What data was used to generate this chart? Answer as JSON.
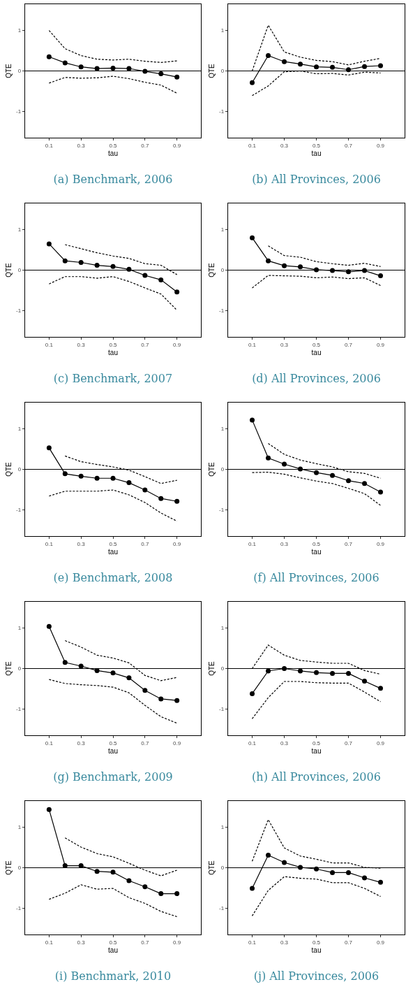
{
  "chart_data": [
    {
      "type": "line",
      "title": "(a) Benchmark, 2006",
      "xlabel": "tau",
      "ylabel": "QTE",
      "x": [
        0.1,
        0.2,
        0.3,
        0.4,
        0.5,
        0.6,
        0.7,
        0.8,
        0.9
      ],
      "xlim": [
        -0.05,
        1.05
      ],
      "xticks": [
        0.1,
        0.3,
        0.5,
        0.7,
        0.9
      ],
      "ylim": [
        -1.65,
        1.65
      ],
      "yticks": [
        -1,
        0,
        1
      ],
      "grid": false,
      "marker": "circle",
      "line_style": "solid",
      "ref_lines": [
        {
          "axis": "y",
          "value": 0,
          "color": "#000000"
        }
      ],
      "series": [
        {
          "color": "#000000",
          "values": [
            0.35,
            0.2,
            0.1,
            0.06,
            0.07,
            0.06,
            -0.01,
            -0.07,
            -0.15
          ]
        },
        {
          "color": "#000000",
          "marker": "none",
          "line_style": "dashed",
          "values": [
            1.0,
            0.55,
            0.38,
            0.29,
            0.27,
            0.29,
            0.24,
            0.21,
            0.25
          ]
        },
        {
          "color": "#000000",
          "marker": "none",
          "line_style": "dashed",
          "values": [
            -0.3,
            -0.16,
            -0.18,
            -0.17,
            -0.13,
            -0.19,
            -0.28,
            -0.35,
            -0.55
          ]
        }
      ]
    },
    {
      "type": "line",
      "title": "(b) All Provinces, 2006",
      "xlabel": "tau",
      "ylabel": "QTE",
      "x": [
        0.1,
        0.2,
        0.3,
        0.4,
        0.5,
        0.6,
        0.7,
        0.8,
        0.9
      ],
      "xlim": [
        -0.05,
        1.05
      ],
      "xticks": [
        0.1,
        0.3,
        0.5,
        0.7,
        0.9
      ],
      "ylim": [
        -1.65,
        1.65
      ],
      "yticks": [
        -1,
        0,
        1
      ],
      "grid": false,
      "marker": "circle",
      "line_style": "solid",
      "ref_lines": [
        {
          "axis": "y",
          "value": 0,
          "color": "#000000"
        }
      ],
      "series": [
        {
          "color": "#000000",
          "values": [
            -0.29,
            0.38,
            0.23,
            0.17,
            0.1,
            0.09,
            0.03,
            0.11,
            0.13
          ]
        },
        {
          "color": "#000000",
          "marker": "none",
          "line_style": "dashed",
          "values": [
            0.0,
            1.13,
            0.47,
            0.34,
            0.26,
            0.23,
            0.15,
            0.24,
            0.31
          ]
        },
        {
          "color": "#000000",
          "marker": "none",
          "line_style": "dashed",
          "values": [
            -0.61,
            -0.37,
            -0.02,
            0.0,
            -0.07,
            -0.06,
            -0.1,
            -0.03,
            -0.05
          ]
        }
      ]
    },
    {
      "type": "line",
      "title": "(c) Benchmark, 2007",
      "xlabel": "tau",
      "ylabel": "QTE",
      "x": [
        0.1,
        0.2,
        0.3,
        0.4,
        0.5,
        0.6,
        0.7,
        0.8,
        0.9
      ],
      "xlim": [
        -0.05,
        1.05
      ],
      "xticks": [
        0.1,
        0.3,
        0.5,
        0.7,
        0.9
      ],
      "ylim": [
        -1.65,
        1.65
      ],
      "yticks": [
        -1,
        0,
        1
      ],
      "grid": false,
      "marker": "circle",
      "line_style": "solid",
      "ref_lines": [
        {
          "axis": "y",
          "value": 0,
          "color": "#000000"
        }
      ],
      "series": [
        {
          "color": "#000000",
          "values": [
            0.65,
            0.23,
            0.19,
            0.12,
            0.09,
            0.02,
            -0.13,
            -0.24,
            -0.54
          ]
        },
        {
          "color": "#000000",
          "marker": "none",
          "line_style": "dashed",
          "values": [
            null,
            0.63,
            0.53,
            0.43,
            0.35,
            0.29,
            0.16,
            0.12,
            -0.11
          ]
        },
        {
          "color": "#000000",
          "marker": "none",
          "line_style": "dashed",
          "values": [
            -0.34,
            -0.16,
            -0.16,
            -0.2,
            -0.16,
            -0.28,
            -0.44,
            -0.59,
            -0.99
          ]
        }
      ]
    },
    {
      "type": "line",
      "title": "(d) All Provinces, 2006",
      "xlabel": "tau",
      "ylabel": "QTE",
      "x": [
        0.1,
        0.2,
        0.3,
        0.4,
        0.5,
        0.6,
        0.7,
        0.8,
        0.9
      ],
      "xlim": [
        -0.05,
        1.05
      ],
      "xticks": [
        0.1,
        0.3,
        0.5,
        0.7,
        0.9
      ],
      "ylim": [
        -1.65,
        1.65
      ],
      "yticks": [
        -1,
        0,
        1
      ],
      "grid": false,
      "marker": "circle",
      "line_style": "solid",
      "ref_lines": [
        {
          "axis": "y",
          "value": 0,
          "color": "#000000"
        }
      ],
      "series": [
        {
          "color": "#000000",
          "values": [
            0.8,
            0.23,
            0.11,
            0.08,
            0.01,
            -0.01,
            -0.04,
            -0.01,
            -0.14
          ]
        },
        {
          "color": "#000000",
          "marker": "none",
          "line_style": "dashed",
          "values": [
            null,
            0.6,
            0.36,
            0.32,
            0.21,
            0.16,
            0.12,
            0.17,
            0.09
          ]
        },
        {
          "color": "#000000",
          "marker": "none",
          "line_style": "dashed",
          "values": [
            -0.44,
            -0.13,
            -0.14,
            -0.15,
            -0.19,
            -0.17,
            -0.21,
            -0.19,
            -0.38
          ]
        }
      ]
    },
    {
      "type": "line",
      "title": "(e) Benchmark, 2008",
      "xlabel": "tau",
      "ylabel": "QTE",
      "x": [
        0.1,
        0.2,
        0.3,
        0.4,
        0.5,
        0.6,
        0.7,
        0.8,
        0.9
      ],
      "xlim": [
        -0.05,
        1.05
      ],
      "xticks": [
        0.1,
        0.3,
        0.5,
        0.7,
        0.9
      ],
      "ylim": [
        -1.65,
        1.65
      ],
      "yticks": [
        -1,
        0,
        1
      ],
      "grid": false,
      "marker": "circle",
      "line_style": "solid",
      "ref_lines": [
        {
          "axis": "y",
          "value": 0,
          "color": "#000000"
        }
      ],
      "series": [
        {
          "color": "#000000",
          "values": [
            0.53,
            -0.11,
            -0.17,
            -0.22,
            -0.22,
            -0.33,
            -0.51,
            -0.72,
            -0.79
          ]
        },
        {
          "color": "#000000",
          "marker": "none",
          "line_style": "dashed",
          "values": [
            null,
            0.33,
            0.19,
            0.12,
            0.06,
            -0.02,
            -0.18,
            -0.35,
            -0.27
          ]
        },
        {
          "color": "#000000",
          "marker": "none",
          "line_style": "dashed",
          "values": [
            -0.66,
            -0.54,
            -0.54,
            -0.54,
            -0.51,
            -0.63,
            -0.82,
            -1.08,
            -1.28
          ]
        }
      ]
    },
    {
      "type": "line",
      "title": "(f) All Provinces, 2006",
      "xlabel": "tau",
      "ylabel": "QTE",
      "x": [
        0.1,
        0.2,
        0.3,
        0.4,
        0.5,
        0.6,
        0.7,
        0.8,
        0.9
      ],
      "xlim": [
        -0.05,
        1.05
      ],
      "xticks": [
        0.1,
        0.3,
        0.5,
        0.7,
        0.9
      ],
      "ylim": [
        -1.65,
        1.65
      ],
      "yticks": [
        -1,
        0,
        1
      ],
      "grid": false,
      "marker": "circle",
      "line_style": "solid",
      "ref_lines": [
        {
          "axis": "y",
          "value": 0,
          "color": "#000000"
        }
      ],
      "series": [
        {
          "color": "#000000",
          "values": [
            1.22,
            0.28,
            0.13,
            0.01,
            -0.08,
            -0.15,
            -0.28,
            -0.35,
            -0.56
          ]
        },
        {
          "color": "#000000",
          "marker": "none",
          "line_style": "dashed",
          "values": [
            null,
            0.64,
            0.37,
            0.23,
            0.14,
            0.06,
            -0.06,
            -0.1,
            -0.22
          ]
        },
        {
          "color": "#000000",
          "marker": "none",
          "line_style": "dashed",
          "values": [
            -0.08,
            -0.07,
            -0.12,
            -0.21,
            -0.29,
            -0.35,
            -0.47,
            -0.6,
            -0.89
          ]
        }
      ]
    },
    {
      "type": "line",
      "title": "(g) Benchmark, 2009",
      "xlabel": "tau",
      "ylabel": "QTE",
      "x": [
        0.1,
        0.2,
        0.3,
        0.4,
        0.5,
        0.6,
        0.7,
        0.8,
        0.9
      ],
      "xlim": [
        -0.05,
        1.05
      ],
      "xticks": [
        0.1,
        0.3,
        0.5,
        0.7,
        0.9
      ],
      "ylim": [
        -1.65,
        1.65
      ],
      "yticks": [
        -1,
        0,
        1
      ],
      "grid": false,
      "marker": "circle",
      "line_style": "solid",
      "ref_lines": [
        {
          "axis": "y",
          "value": 0,
          "color": "#000000"
        }
      ],
      "series": [
        {
          "color": "#000000",
          "values": [
            1.04,
            0.15,
            0.06,
            -0.05,
            -0.11,
            -0.23,
            -0.54,
            -0.75,
            -0.79
          ]
        },
        {
          "color": "#000000",
          "marker": "none",
          "line_style": "dashed",
          "values": [
            null,
            0.69,
            0.53,
            0.33,
            0.26,
            0.14,
            -0.17,
            -0.3,
            -0.22
          ]
        },
        {
          "color": "#000000",
          "marker": "none",
          "line_style": "dashed",
          "values": [
            -0.27,
            -0.37,
            -0.4,
            -0.42,
            -0.46,
            -0.6,
            -0.91,
            -1.19,
            -1.35
          ]
        }
      ]
    },
    {
      "type": "line",
      "title": "(h) All Provinces, 2006",
      "xlabel": "tau",
      "ylabel": "QTE",
      "x": [
        0.1,
        0.2,
        0.3,
        0.4,
        0.5,
        0.6,
        0.7,
        0.8,
        0.9
      ],
      "xlim": [
        -0.05,
        1.05
      ],
      "xticks": [
        0.1,
        0.3,
        0.5,
        0.7,
        0.9
      ],
      "ylim": [
        -1.65,
        1.65
      ],
      "yticks": [
        -1,
        0,
        1
      ],
      "grid": false,
      "marker": "circle",
      "line_style": "solid",
      "ref_lines": [
        {
          "axis": "y",
          "value": 0,
          "color": "#000000"
        }
      ],
      "series": [
        {
          "color": "#000000",
          "values": [
            -0.62,
            -0.06,
            0.0,
            -0.06,
            -0.1,
            -0.12,
            -0.12,
            -0.31,
            -0.49
          ]
        },
        {
          "color": "#000000",
          "marker": "none",
          "line_style": "dashed",
          "values": [
            0.0,
            0.58,
            0.33,
            0.2,
            0.16,
            0.13,
            0.13,
            -0.05,
            -0.14
          ]
        },
        {
          "color": "#000000",
          "marker": "none",
          "line_style": "dashed",
          "values": [
            -1.24,
            -0.72,
            -0.32,
            -0.32,
            -0.35,
            -0.36,
            -0.36,
            -0.58,
            -0.82
          ]
        }
      ]
    },
    {
      "type": "line",
      "title": "(i) Benchmark, 2010",
      "xlabel": "tau",
      "ylabel": "QTE",
      "x": [
        0.1,
        0.2,
        0.3,
        0.4,
        0.5,
        0.6,
        0.7,
        0.8,
        0.9
      ],
      "xlim": [
        -0.05,
        1.05
      ],
      "xticks": [
        0.1,
        0.3,
        0.5,
        0.7,
        0.9
      ],
      "ylim": [
        -1.65,
        1.65
      ],
      "yticks": [
        -1,
        0,
        1
      ],
      "grid": false,
      "marker": "circle",
      "line_style": "solid",
      "ref_lines": [
        {
          "axis": "y",
          "value": 0,
          "color": "#000000"
        }
      ],
      "series": [
        {
          "color": "#000000",
          "values": [
            1.44,
            0.05,
            0.05,
            -0.09,
            -0.11,
            -0.32,
            -0.47,
            -0.64,
            -0.64
          ]
        },
        {
          "color": "#000000",
          "marker": "none",
          "line_style": "dashed",
          "values": [
            null,
            0.74,
            0.51,
            0.35,
            0.27,
            0.11,
            -0.06,
            -0.2,
            -0.06
          ]
        },
        {
          "color": "#000000",
          "marker": "none",
          "line_style": "dashed",
          "values": [
            -0.78,
            -0.63,
            -0.42,
            -0.53,
            -0.51,
            -0.74,
            -0.88,
            -1.08,
            -1.21
          ]
        }
      ]
    },
    {
      "type": "line",
      "title": "(j) All Provinces, 2006",
      "xlabel": "tau",
      "ylabel": "QTE",
      "x": [
        0.1,
        0.2,
        0.3,
        0.4,
        0.5,
        0.6,
        0.7,
        0.8,
        0.9
      ],
      "xlim": [
        -0.05,
        1.05
      ],
      "xticks": [
        0.1,
        0.3,
        0.5,
        0.7,
        0.9
      ],
      "ylim": [
        -1.65,
        1.65
      ],
      "yticks": [
        -1,
        0,
        1
      ],
      "grid": false,
      "marker": "circle",
      "line_style": "solid",
      "ref_lines": [
        {
          "axis": "y",
          "value": 0,
          "color": "#000000"
        }
      ],
      "series": [
        {
          "color": "#000000",
          "values": [
            -0.51,
            0.31,
            0.13,
            0.01,
            -0.03,
            -0.12,
            -0.12,
            -0.25,
            -0.36
          ]
        },
        {
          "color": "#000000",
          "marker": "none",
          "line_style": "dashed",
          "values": [
            0.16,
            1.19,
            0.49,
            0.29,
            0.21,
            0.12,
            0.12,
            0.01,
            -0.01
          ]
        },
        {
          "color": "#000000",
          "marker": "none",
          "line_style": "dashed",
          "values": [
            -1.19,
            -0.56,
            -0.22,
            -0.26,
            -0.28,
            -0.37,
            -0.37,
            -0.51,
            -0.71
          ]
        }
      ]
    }
  ]
}
